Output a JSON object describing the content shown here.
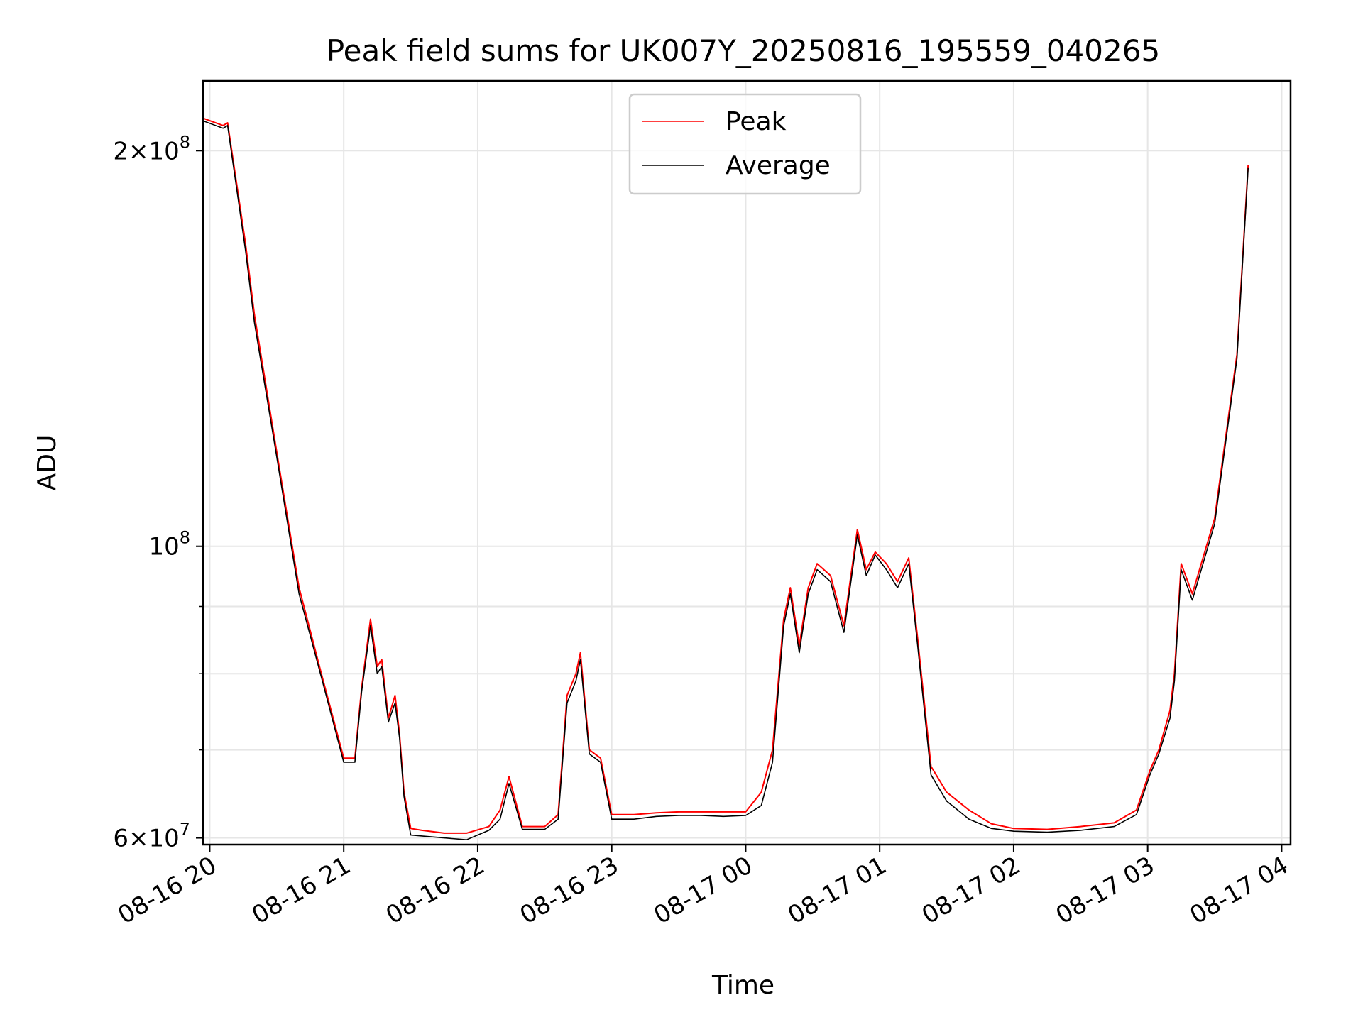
{
  "chart_data": {
    "type": "line",
    "title": "Peak field sums for UK007Y_20250816_195559_040265",
    "xlabel": "Time",
    "ylabel": "ADU",
    "y_scale": "log",
    "ylim": [
      59300000,
      226000000
    ],
    "xlim": [
      "2025-08-16 19:57",
      "2025-08-17 04:04"
    ],
    "grid": true,
    "legend_position": "top-center",
    "x_ticks": [
      {
        "t": "2025-08-16 20:00",
        "label": "08-16 20"
      },
      {
        "t": "2025-08-16 21:00",
        "label": "08-16 21"
      },
      {
        "t": "2025-08-16 22:00",
        "label": "08-16 22"
      },
      {
        "t": "2025-08-16 23:00",
        "label": "08-16 23"
      },
      {
        "t": "2025-08-17 00:00",
        "label": "08-17 00"
      },
      {
        "t": "2025-08-17 01:00",
        "label": "08-17 01"
      },
      {
        "t": "2025-08-17 02:00",
        "label": "08-17 02"
      },
      {
        "t": "2025-08-17 03:00",
        "label": "08-17 03"
      },
      {
        "t": "2025-08-17 04:00",
        "label": "08-17 04"
      }
    ],
    "y_major_ticks": [
      {
        "value": 60000000,
        "base": "6×10",
        "exp": "7"
      },
      {
        "value": 100000000,
        "base": "10",
        "exp": "8"
      },
      {
        "value": 200000000,
        "base": "2×10",
        "exp": "8"
      }
    ],
    "y_minor_ticks": [
      70000000,
      80000000,
      90000000
    ],
    "series": [
      {
        "name": "Peak",
        "color": "#ff0000",
        "x": [
          "2025-08-16 19:56",
          "2025-08-16 20:06",
          "2025-08-16 20:08",
          "2025-08-16 20:16",
          "2025-08-16 20:20",
          "2025-08-16 20:30",
          "2025-08-16 20:40",
          "2025-08-16 20:50",
          "2025-08-16 21:00",
          "2025-08-16 21:05",
          "2025-08-16 21:08",
          "2025-08-16 21:12",
          "2025-08-16 21:15",
          "2025-08-16 21:17",
          "2025-08-16 21:20",
          "2025-08-16 21:23",
          "2025-08-16 21:25",
          "2025-08-16 21:27",
          "2025-08-16 21:30",
          "2025-08-16 21:35",
          "2025-08-16 21:45",
          "2025-08-16 21:55",
          "2025-08-16 22:05",
          "2025-08-16 22:10",
          "2025-08-16 22:14",
          "2025-08-16 22:20",
          "2025-08-16 22:30",
          "2025-08-16 22:36",
          "2025-08-16 22:40",
          "2025-08-16 22:44",
          "2025-08-16 22:46",
          "2025-08-16 22:50",
          "2025-08-16 22:55",
          "2025-08-16 23:00",
          "2025-08-16 23:10",
          "2025-08-16 23:20",
          "2025-08-16 23:30",
          "2025-08-16 23:40",
          "2025-08-16 23:50",
          "2025-08-17 00:00",
          "2025-08-17 00:07",
          "2025-08-17 00:12",
          "2025-08-17 00:17",
          "2025-08-17 00:20",
          "2025-08-17 00:24",
          "2025-08-17 00:28",
          "2025-08-17 00:32",
          "2025-08-17 00:38",
          "2025-08-17 00:44",
          "2025-08-17 00:50",
          "2025-08-17 00:54",
          "2025-08-17 00:58",
          "2025-08-17 01:03",
          "2025-08-17 01:08",
          "2025-08-17 01:13",
          "2025-08-17 01:17",
          "2025-08-17 01:20",
          "2025-08-17 01:23",
          "2025-08-17 01:30",
          "2025-08-17 01:40",
          "2025-08-17 01:50",
          "2025-08-17 02:00",
          "2025-08-17 02:15",
          "2025-08-17 02:30",
          "2025-08-17 02:45",
          "2025-08-17 02:55",
          "2025-08-17 03:01",
          "2025-08-17 03:05",
          "2025-08-17 03:10",
          "2025-08-17 03:12",
          "2025-08-17 03:15",
          "2025-08-17 03:20",
          "2025-08-17 03:30",
          "2025-08-17 03:40",
          "2025-08-17 03:45"
        ],
        "values": [
          212000000,
          209000000,
          210000000,
          170000000,
          150000000,
          118000000,
          93000000,
          80000000,
          69000000,
          69000000,
          78000000,
          88000000,
          81000000,
          82000000,
          74000000,
          77000000,
          72000000,
          65000000,
          61000000,
          60800000,
          60500000,
          60500000,
          61200000,
          63000000,
          66800000,
          61200000,
          61200000,
          62500000,
          77000000,
          80000000,
          83000000,
          70000000,
          69000000,
          62500000,
          62500000,
          62700000,
          62800000,
          62800000,
          62800000,
          62800000,
          65000000,
          70000000,
          88000000,
          93000000,
          84000000,
          93000000,
          97000000,
          95000000,
          87000000,
          103000000,
          96000000,
          99000000,
          97000000,
          94000000,
          98000000,
          85000000,
          76000000,
          68000000,
          65000000,
          63000000,
          61500000,
          61000000,
          60900000,
          61200000,
          61600000,
          63000000,
          67500000,
          70000000,
          75000000,
          80000000,
          97000000,
          92000000,
          105000000,
          140000000,
          195000000
        ]
      },
      {
        "name": "Average",
        "color": "#000000",
        "x": [
          "2025-08-16 19:56",
          "2025-08-16 20:06",
          "2025-08-16 20:08",
          "2025-08-16 20:16",
          "2025-08-16 20:20",
          "2025-08-16 20:30",
          "2025-08-16 20:40",
          "2025-08-16 20:50",
          "2025-08-16 21:00",
          "2025-08-16 21:05",
          "2025-08-16 21:08",
          "2025-08-16 21:12",
          "2025-08-16 21:15",
          "2025-08-16 21:17",
          "2025-08-16 21:20",
          "2025-08-16 21:23",
          "2025-08-16 21:25",
          "2025-08-16 21:27",
          "2025-08-16 21:30",
          "2025-08-16 21:35",
          "2025-08-16 21:45",
          "2025-08-16 21:55",
          "2025-08-16 22:05",
          "2025-08-16 22:10",
          "2025-08-16 22:14",
          "2025-08-16 22:20",
          "2025-08-16 22:30",
          "2025-08-16 22:36",
          "2025-08-16 22:40",
          "2025-08-16 22:44",
          "2025-08-16 22:46",
          "2025-08-16 22:50",
          "2025-08-16 22:55",
          "2025-08-16 23:00",
          "2025-08-16 23:10",
          "2025-08-16 23:20",
          "2025-08-16 23:30",
          "2025-08-16 23:40",
          "2025-08-16 23:50",
          "2025-08-17 00:00",
          "2025-08-17 00:07",
          "2025-08-17 00:12",
          "2025-08-17 00:17",
          "2025-08-17 00:20",
          "2025-08-17 00:24",
          "2025-08-17 00:28",
          "2025-08-17 00:32",
          "2025-08-17 00:38",
          "2025-08-17 00:44",
          "2025-08-17 00:50",
          "2025-08-17 00:54",
          "2025-08-17 00:58",
          "2025-08-17 01:03",
          "2025-08-17 01:08",
          "2025-08-17 01:13",
          "2025-08-17 01:17",
          "2025-08-17 01:20",
          "2025-08-17 01:23",
          "2025-08-17 01:30",
          "2025-08-17 01:40",
          "2025-08-17 01:50",
          "2025-08-17 02:00",
          "2025-08-17 02:15",
          "2025-08-17 02:30",
          "2025-08-17 02:45",
          "2025-08-17 02:55",
          "2025-08-17 03:01",
          "2025-08-17 03:05",
          "2025-08-17 03:10",
          "2025-08-17 03:12",
          "2025-08-17 03:15",
          "2025-08-17 03:20",
          "2025-08-17 03:30",
          "2025-08-17 03:40",
          "2025-08-17 03:45"
        ],
        "values": [
          211000000,
          208000000,
          209000000,
          168000000,
          148000000,
          117000000,
          92000000,
          79500000,
          68500000,
          68500000,
          77500000,
          87000000,
          80000000,
          81000000,
          73500000,
          76000000,
          71500000,
          64500000,
          60300000,
          60200000,
          60000000,
          59800000,
          60800000,
          62000000,
          66000000,
          60900000,
          60900000,
          62000000,
          76000000,
          79000000,
          82000000,
          69500000,
          68500000,
          62000000,
          62000000,
          62300000,
          62400000,
          62400000,
          62300000,
          62400000,
          63500000,
          68500000,
          87000000,
          92000000,
          83000000,
          92000000,
          96000000,
          94000000,
          86000000,
          102000000,
          95000000,
          98500000,
          96000000,
          93000000,
          97000000,
          84000000,
          75000000,
          67000000,
          64000000,
          62000000,
          61000000,
          60700000,
          60600000,
          60800000,
          61200000,
          62500000,
          67000000,
          69500000,
          74000000,
          79000000,
          96000000,
          91000000,
          104000000,
          139000000,
          194000000
        ]
      }
    ]
  }
}
